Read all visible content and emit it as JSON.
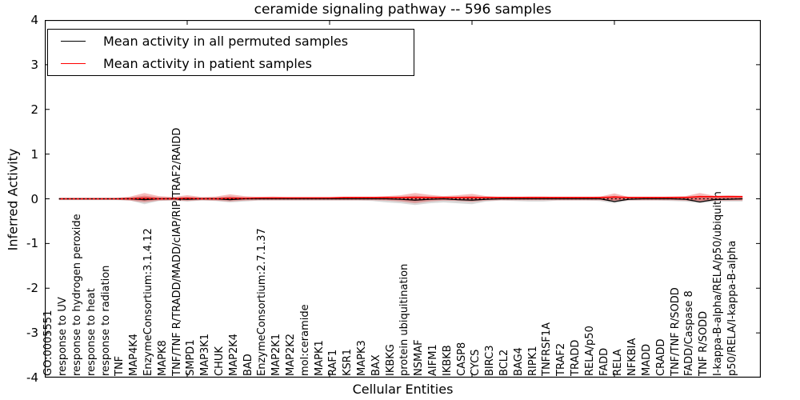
{
  "title": "ceramide signaling pathway -- 596 samples",
  "chart_data": {
    "type": "violin-line",
    "title": "ceramide signaling pathway -- 596 samples",
    "xlabel": "Cellular Entities",
    "ylabel": "Inferred Activity",
    "ylim": [
      -4,
      4
    ],
    "yticks": [
      4,
      3,
      2,
      1,
      0,
      -1,
      -2,
      -3,
      -4
    ],
    "grid": false,
    "legend_position": "upper left",
    "zero_reference_line": 0,
    "categories": [
      "GO:0005551",
      "response to UV",
      "response to hydrogen peroxide",
      "response to heat",
      "response to radiation",
      "TNF",
      "MAP4K4",
      "EnzymeConsortium:3.1.4.12",
      "MAPK8",
      "TNF/TNF R/TRADD/MADD/cIAP/RIP/TRAF2/RAIDD",
      "SMPD1",
      "MAP3K1",
      "CHUK",
      "MAP2K4",
      "BAD",
      "EnzymeConsortium:2.7.1.37",
      "MAP2K1",
      "MAP2K2",
      "mol:ceramide",
      "MAPK1",
      "RAF1",
      "KSR1",
      "MAPK3",
      "BAX",
      "IKBKG",
      "protein ubiquitination",
      "NSMAF",
      "AIFM1",
      "IKBKB",
      "CASP8",
      "CYCS",
      "BIRC3",
      "BCL2",
      "BAG4",
      "RIPK1",
      "TNFRSF1A",
      "TRAF2",
      "TRADD",
      "RELA/p50",
      "FADD",
      "RELA",
      "NFKBIA",
      "MADD",
      "CRADD",
      "TNF/TNF R/SODD",
      "FADD/Caspase 8",
      "TNF R/SODD",
      "I-kappa-B-alpha/RELA/p50/ubiquitin",
      "p50/RELA/I-kappa-B-alpha"
    ],
    "series": [
      {
        "name": "Mean activity in all permuted samples",
        "color": "#000000",
        "values": [
          0,
          0,
          0,
          0,
          0,
          0,
          -0.02,
          0,
          0,
          -0.01,
          0,
          0,
          -0.02,
          0,
          0,
          0,
          0,
          0,
          0,
          0,
          0,
          0,
          0,
          0,
          -0.01,
          -0.03,
          -0.01,
          0,
          -0.02,
          -0.03,
          -0.01,
          0,
          0,
          0,
          0,
          0,
          0,
          0,
          0,
          -0.06,
          -0.01,
          0,
          0,
          0,
          -0.01,
          -0.07,
          -0.02,
          -0.01,
          0
        ]
      },
      {
        "name": "Mean activity in patient samples",
        "color": "#ff0000",
        "values": [
          0,
          0,
          0,
          0,
          0,
          0,
          0.01,
          0,
          0,
          0.01,
          0,
          0,
          0.01,
          0.01,
          0.02,
          0.02,
          0.02,
          0.02,
          0.02,
          0.02,
          0.03,
          0.03,
          0.03,
          0.03,
          0.03,
          0.03,
          0.03,
          0.03,
          0.03,
          0.03,
          0.03,
          0.03,
          0.03,
          0.03,
          0.03,
          0.03,
          0.03,
          0.03,
          0.03,
          0.04,
          0.03,
          0.03,
          0.03,
          0.03,
          0.03,
          0.05,
          0.05,
          0.05,
          0.05
        ]
      }
    ],
    "violins": {
      "patient": {
        "color": "#e03030",
        "up": [
          0.02,
          0.02,
          0.02,
          0.02,
          0.02,
          0.05,
          0.13,
          0.06,
          0.04,
          0.08,
          0.04,
          0.05,
          0.1,
          0.06,
          0.04,
          0.05,
          0.04,
          0.04,
          0.04,
          0.04,
          0.04,
          0.04,
          0.04,
          0.06,
          0.08,
          0.13,
          0.09,
          0.06,
          0.08,
          0.11,
          0.06,
          0.04,
          0.04,
          0.05,
          0.05,
          0.04,
          0.04,
          0.04,
          0.05,
          0.12,
          0.04,
          0.04,
          0.04,
          0.05,
          0.06,
          0.13,
          0.07,
          0.08,
          0.07
        ],
        "down": [
          0.02,
          0.02,
          0.02,
          0.02,
          0.02,
          0.04,
          0.08,
          0.04,
          0.03,
          0.05,
          0.03,
          0.04,
          0.06,
          0.04,
          0.03,
          0.03,
          0.03,
          0.03,
          0.03,
          0.03,
          0.03,
          0.03,
          0.03,
          0.04,
          0.06,
          0.1,
          0.06,
          0.04,
          0.05,
          0.07,
          0.04,
          0.03,
          0.03,
          0.03,
          0.03,
          0.03,
          0.03,
          0.03,
          0.03,
          0.06,
          0.03,
          0.03,
          0.03,
          0.03,
          0.04,
          0.07,
          0.04,
          0.04,
          0.04
        ]
      },
      "permuted": {
        "color": "#000000",
        "up": [
          0.02,
          0.02,
          0.02,
          0.02,
          0.02,
          0.03,
          0.05,
          0.03,
          0.03,
          0.03,
          0.03,
          0.03,
          0.04,
          0.03,
          0.03,
          0.03,
          0.03,
          0.03,
          0.03,
          0.03,
          0.03,
          0.03,
          0.03,
          0.03,
          0.04,
          0.05,
          0.04,
          0.03,
          0.03,
          0.04,
          0.03,
          0.03,
          0.03,
          0.03,
          0.03,
          0.03,
          0.03,
          0.03,
          0.03,
          0.05,
          0.03,
          0.03,
          0.03,
          0.03,
          0.03,
          0.05,
          0.03,
          0.03,
          0.03
        ],
        "down": [
          0.03,
          0.03,
          0.03,
          0.03,
          0.03,
          0.04,
          0.12,
          0.05,
          0.04,
          0.06,
          0.04,
          0.05,
          0.08,
          0.06,
          0.04,
          0.04,
          0.04,
          0.04,
          0.04,
          0.04,
          0.04,
          0.04,
          0.05,
          0.08,
          0.1,
          0.14,
          0.1,
          0.08,
          0.1,
          0.12,
          0.06,
          0.04,
          0.05,
          0.06,
          0.06,
          0.04,
          0.04,
          0.04,
          0.05,
          0.1,
          0.04,
          0.04,
          0.04,
          0.05,
          0.06,
          0.1,
          0.06,
          0.06,
          0.06
        ]
      }
    },
    "x_major_tick_positions": [
      10,
      20,
      30,
      40
    ]
  },
  "legend": {
    "items": [
      {
        "label": "Mean activity in all permuted samples",
        "color": "#000000"
      },
      {
        "label": "Mean activity in patient samples",
        "color": "#ff0000"
      }
    ]
  }
}
